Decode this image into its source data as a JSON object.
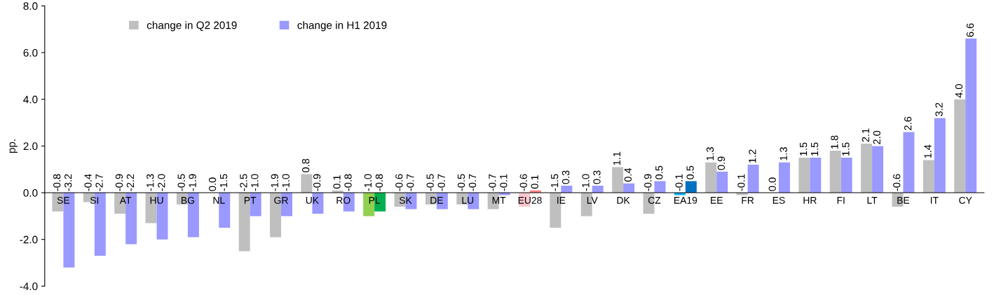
{
  "chart_data": {
    "type": "bar",
    "ylabel": "pp.",
    "categories": [
      "SE",
      "SI",
      "AT",
      "HU",
      "BG",
      "NL",
      "PT",
      "GR",
      "UK",
      "RO",
      "PL",
      "SK",
      "DE",
      "LU",
      "MT",
      "EU28",
      "IE",
      "LV",
      "DK",
      "CZ",
      "EA19",
      "EE",
      "FR",
      "ES",
      "HR",
      "FI",
      "LT",
      "BE",
      "IT",
      "CY"
    ],
    "series": [
      {
        "name": "change in Q2 2019",
        "color": "#bfbfbf",
        "colors": [
          "#bfbfbf",
          "#bfbfbf",
          "#bfbfbf",
          "#bfbfbf",
          "#bfbfbf",
          "#bfbfbf",
          "#bfbfbf",
          "#bfbfbf",
          "#bfbfbf",
          "#bfbfbf",
          "#92d050",
          "#bfbfbf",
          "#bfbfbf",
          "#bfbfbf",
          "#bfbfbf",
          "#ffc7ce",
          "#bfbfbf",
          "#bfbfbf",
          "#bfbfbf",
          "#bfbfbf",
          "#00b0f0",
          "#bfbfbf",
          "#bfbfbf",
          "#bfbfbf",
          "#bfbfbf",
          "#bfbfbf",
          "#bfbfbf",
          "#bfbfbf",
          "#bfbfbf",
          "#bfbfbf"
        ],
        "values": [
          -0.8,
          -0.4,
          -0.9,
          -1.3,
          -0.5,
          0.0,
          -2.5,
          -1.9,
          0.8,
          0.1,
          -1.0,
          -0.6,
          -0.5,
          -0.5,
          -0.7,
          -0.6,
          -1.5,
          -1.0,
          1.1,
          -0.9,
          -0.1,
          1.3,
          -0.1,
          0.0,
          1.5,
          1.8,
          2.1,
          -0.6,
          1.4,
          4.0
        ],
        "value_labels": [
          "-0.8",
          "-0.4",
          "-0.9",
          "-1.3",
          "-0.5",
          "0.0",
          "-2.5",
          "-1.9",
          "0.8",
          "0.1",
          "-1.0",
          "-0.6",
          "-0.5",
          "-0.5",
          "-0.7",
          "-0.6",
          "-1.5",
          "-1.0",
          "1.1",
          "-0.9",
          "-0.1",
          "1.3",
          "-0.1",
          "0.0",
          "1.5",
          "1.8",
          "2.1",
          "-0.6",
          "1.4",
          "4.0"
        ]
      },
      {
        "name": "change in H1 2019",
        "color": "#9999ff",
        "colors": [
          "#9999ff",
          "#9999ff",
          "#9999ff",
          "#9999ff",
          "#9999ff",
          "#9999ff",
          "#9999ff",
          "#9999ff",
          "#9999ff",
          "#9999ff",
          "#00b050",
          "#9999ff",
          "#9999ff",
          "#9999ff",
          "#9999ff",
          "#ff8080",
          "#9999ff",
          "#9999ff",
          "#9999ff",
          "#9999ff",
          "#0070c0",
          "#9999ff",
          "#9999ff",
          "#9999ff",
          "#9999ff",
          "#9999ff",
          "#9999ff",
          "#9999ff",
          "#9999ff",
          "#9999ff"
        ],
        "values": [
          -3.2,
          -2.7,
          -2.2,
          -2.0,
          -1.9,
          -1.5,
          -1.0,
          -1.0,
          -0.9,
          -0.8,
          -0.8,
          -0.7,
          -0.7,
          -0.7,
          -0.1,
          0.1,
          0.3,
          0.3,
          0.4,
          0.5,
          0.5,
          0.9,
          1.2,
          1.3,
          1.5,
          1.5,
          2.0,
          2.6,
          3.2,
          6.6
        ],
        "value_labels": [
          "-3.2",
          "-2.7",
          "-2.2",
          "-2.0",
          "-1.9",
          "-1.5",
          "-1.0",
          "-1.0",
          "-0.9",
          "-0.8",
          "-0.8",
          "-0.7",
          "-0.7",
          "-0.7",
          "-0.1",
          "0.1",
          "0.3",
          "0.3",
          "0.4",
          "0.5",
          "0.5",
          "0.9",
          "1.2",
          "1.3",
          "1.5",
          "1.5",
          "2.0",
          "2.6",
          "3.2",
          "6.6"
        ]
      }
    ],
    "ylim": [
      -4,
      8
    ],
    "yticks": [
      {
        "value": -4,
        "label": "-4.0"
      },
      {
        "value": -2,
        "label": "-2.0"
      },
      {
        "value": 0,
        "label": "0.0"
      },
      {
        "value": 2,
        "label": "2.0"
      },
      {
        "value": 4,
        "label": "4.0"
      },
      {
        "value": 6,
        "label": "6.0"
      },
      {
        "value": 8,
        "label": "8.0"
      }
    ],
    "legend": "top left",
    "grid": false
  }
}
